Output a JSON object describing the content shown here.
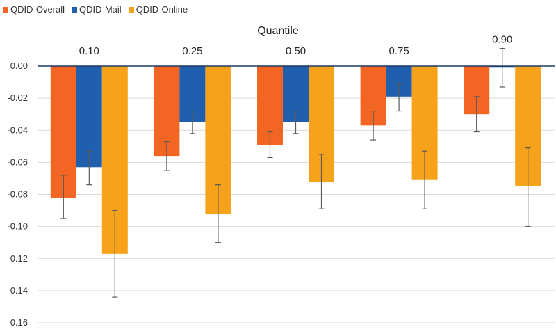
{
  "chart_data": {
    "type": "bar",
    "title": "Quantile",
    "categories": [
      "0.10",
      "0.25",
      "0.50",
      "0.75",
      "0.90"
    ],
    "series": [
      {
        "name": "QDID-Overall",
        "color": "#F26522",
        "values": [
          -0.082,
          -0.056,
          -0.049,
          -0.037,
          -0.03
        ],
        "error_low": [
          -0.095,
          -0.065,
          -0.057,
          -0.046,
          -0.041
        ],
        "error_high": [
          -0.068,
          -0.047,
          -0.041,
          -0.028,
          -0.019
        ]
      },
      {
        "name": "QDID-Mail",
        "color": "#1F5FAE",
        "values": [
          -0.063,
          -0.035,
          -0.035,
          -0.019,
          -0.001
        ],
        "error_low": [
          -0.074,
          -0.042,
          -0.042,
          -0.028,
          -0.013
        ],
        "error_high": [
          -0.053,
          -0.028,
          -0.028,
          -0.011,
          0.011
        ]
      },
      {
        "name": "QDID-Online",
        "color": "#F7A21B",
        "values": [
          -0.117,
          -0.092,
          -0.072,
          -0.071,
          -0.075
        ],
        "error_low": [
          -0.144,
          -0.11,
          -0.089,
          -0.089,
          -0.1
        ],
        "error_high": [
          -0.09,
          -0.074,
          -0.055,
          -0.053,
          -0.051
        ]
      }
    ],
    "ylim": [
      -0.16,
      0.0
    ],
    "yticks": [
      "0.00",
      "-0.02",
      "-0.04",
      "-0.06",
      "-0.08",
      "-0.10",
      "-0.12",
      "-0.14",
      "-0.16"
    ],
    "grid": true,
    "legend_position": "top-left",
    "axis_line_color": "#1F3864",
    "gridline_color": "#D9D9D9",
    "error_bar_color": "#595959"
  }
}
